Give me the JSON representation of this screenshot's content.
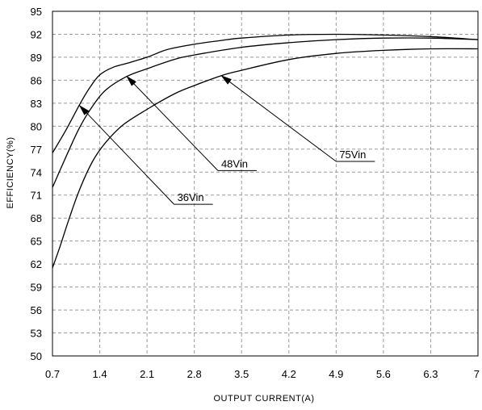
{
  "chart_data": {
    "type": "line",
    "title": "",
    "xlabel": "OUTPUT CURRENT(A)",
    "ylabel": "EFFICIENCY(%)",
    "xlim": [
      0.7,
      7
    ],
    "ylim": [
      50,
      95
    ],
    "xticks": [
      "0.7",
      "1.4",
      "2.1",
      "2.8",
      "3.5",
      "4.2",
      "4.9",
      "5.6",
      "6.3",
      "7"
    ],
    "yticks": [
      "50",
      "53",
      "56",
      "59",
      "62",
      "65",
      "68",
      "71",
      "74",
      "77",
      "80",
      "83",
      "86",
      "89",
      "92",
      "95"
    ],
    "grid": true,
    "series": [
      {
        "name": "36Vin",
        "color": "#000000",
        "x": [
          0.7,
          0.9,
          1.1,
          1.25,
          1.4,
          1.6,
          1.8,
          2.1,
          2.4,
          2.8,
          3.2,
          3.5,
          4.2,
          4.9,
          5.6,
          6.3,
          7.0
        ],
        "y": [
          76.5,
          79.5,
          82.8,
          85.0,
          86.7,
          87.7,
          88.2,
          89.0,
          90.0,
          90.7,
          91.2,
          91.5,
          91.9,
          92.0,
          91.9,
          91.7,
          91.3
        ]
      },
      {
        "name": "48Vin",
        "color": "#000000",
        "x": [
          0.7,
          0.9,
          1.1,
          1.3,
          1.5,
          1.8,
          2.1,
          2.5,
          2.8,
          3.5,
          4.2,
          4.9,
          5.6,
          6.3,
          7.0
        ],
        "y": [
          72.0,
          76.0,
          79.8,
          82.7,
          84.8,
          86.5,
          87.5,
          88.7,
          89.3,
          90.3,
          90.9,
          91.3,
          91.5,
          91.5,
          91.3
        ]
      },
      {
        "name": "75Vin",
        "color": "#000000",
        "x": [
          0.7,
          0.8,
          0.95,
          1.1,
          1.3,
          1.5,
          1.75,
          2.1,
          2.5,
          2.8,
          3.2,
          3.5,
          4.2,
          4.9,
          5.6,
          6.3,
          7.0
        ],
        "y": [
          61.5,
          64.0,
          68.0,
          71.7,
          75.5,
          78.0,
          80.2,
          82.2,
          84.2,
          85.3,
          86.6,
          87.3,
          88.7,
          89.5,
          89.9,
          90.1,
          90.1
        ]
      }
    ],
    "annotations": [
      {
        "text": "36Vin",
        "series": "36Vin",
        "arrow_to": [
          1.1,
          82.7
        ],
        "label_at": [
          2.5,
          69.8
        ]
      },
      {
        "text": "48Vin",
        "series": "48Vin",
        "arrow_to": [
          1.8,
          86.5
        ],
        "label_at": [
          3.15,
          74.2
        ]
      },
      {
        "text": "75Vin",
        "series": "75Vin",
        "arrow_to": [
          3.2,
          86.6
        ],
        "label_at": [
          4.9,
          75.4
        ]
      }
    ]
  }
}
